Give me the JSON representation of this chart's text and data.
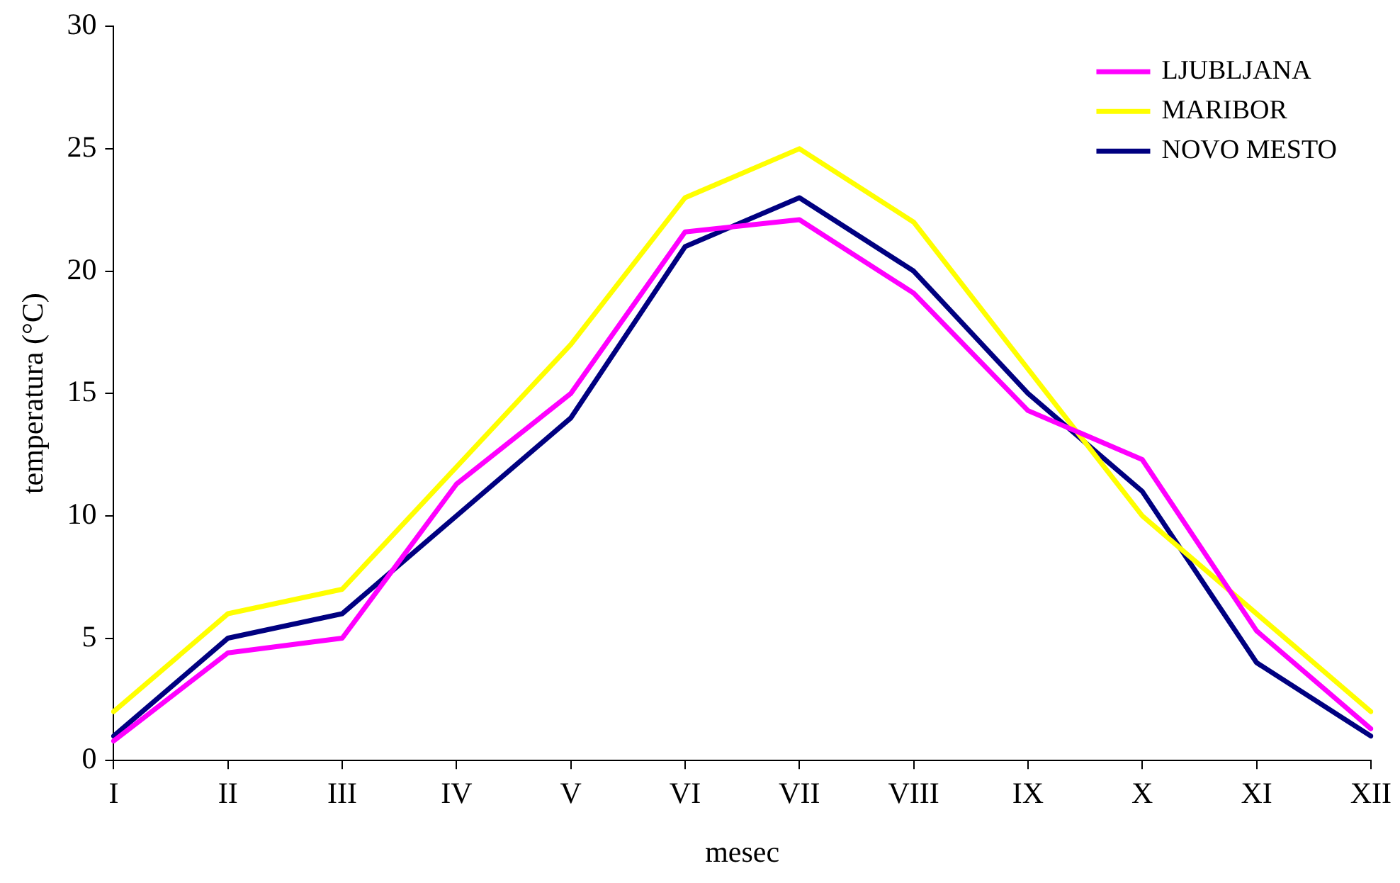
{
  "chart_data": {
    "type": "line",
    "xlabel": "mesec",
    "ylabel": "temperatura (°C)",
    "categories": [
      "I",
      "II",
      "III",
      "IV",
      "V",
      "VI",
      "VII",
      "VIII",
      "IX",
      "X",
      "XI",
      "XII"
    ],
    "series": [
      {
        "name": "LJUBLJANA",
        "color": "#ff00ff",
        "values": [
          0.8,
          4.4,
          5.0,
          11.3,
          15.0,
          21.6,
          22.1,
          19.1,
          14.3,
          12.3,
          5.3,
          1.3
        ]
      },
      {
        "name": "MARIBOR",
        "color": "#ffff00",
        "values": [
          2,
          6,
          7,
          12,
          17,
          23,
          25,
          22,
          16,
          10,
          6,
          2
        ]
      },
      {
        "name": "NOVO MESTO",
        "color": "#000080",
        "values": [
          1,
          5,
          6,
          10,
          14,
          21,
          23,
          20,
          15,
          11,
          4,
          1
        ]
      }
    ],
    "ylim": [
      0,
      30
    ],
    "yticks": [
      0,
      5,
      10,
      15,
      20,
      25,
      30
    ],
    "grid": false,
    "legend": "top right",
    "marker": "none",
    "line_style": "solid"
  }
}
